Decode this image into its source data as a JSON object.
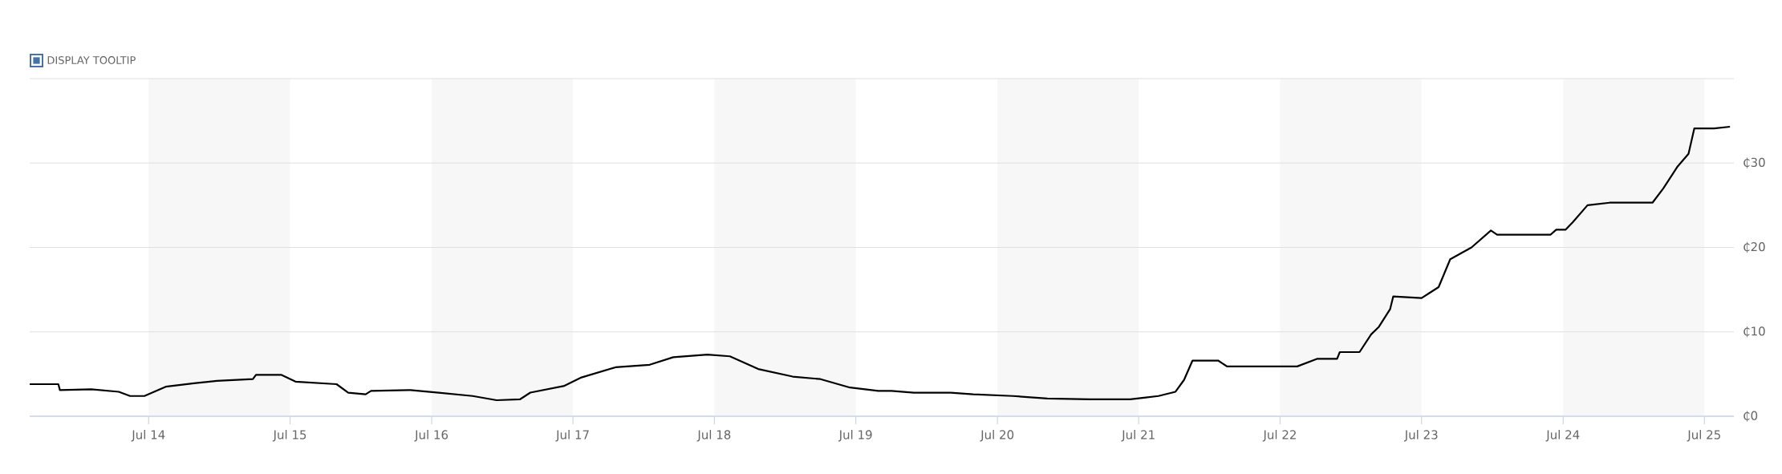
{
  "chart_data": {
    "type": "line",
    "annotations": [
      "DISPLAY TOOLTIP"
    ],
    "x": [
      "2013-08-28",
      "2013-11-10",
      "2013-11-14",
      "2014-02-03",
      "2014-04-15",
      "2014-05-14",
      "2014-06-20",
      "2014-08-14",
      "2014-10-26",
      "2014-12-24",
      "2015-03-27",
      "2015-04-04",
      "2015-06-09",
      "2015-07-15",
      "2015-10-29",
      "2015-11-28",
      "2016-01-12",
      "2016-01-26",
      "2016-05-07",
      "2016-07-19",
      "2016-10-15",
      "2016-12-16",
      "2017-02-14",
      "2017-03-13",
      "2017-06-09",
      "2017-07-23",
      "2017-10-19",
      "2018-01-15",
      "2018-03-17",
      "2018-06-13",
      "2018-08-10",
      "2018-10-22",
      "2019-01-19",
      "2019-04-01",
      "2019-06-16",
      "2019-08-28",
      "2019-10-01",
      "2019-11-28",
      "2020-03-02",
      "2020-04-29",
      "2020-08-10",
      "2020-11-07",
      "2021-02-25",
      "2021-06-09",
      "2021-07-15",
      "2021-08-21",
      "2021-10-04",
      "2021-10-26",
      "2021-11-17",
      "2022-01-22",
      "2022-02-14",
      "2022-08-14",
      "2022-10-04",
      "2022-11-25",
      "2022-12-02",
      "2023-01-22",
      "2023-02-21",
      "2023-03-13",
      "2023-04-11",
      "2023-04-19",
      "2023-07-01",
      "2023-08-14",
      "2023-09-13",
      "2023-11-07",
      "2023-12-27",
      "2024-01-12",
      "2024-03-24",
      "2024-05-29",
      "2024-06-13",
      "2024-07-07",
      "2024-07-26",
      "2024-09-02",
      "2024-10-29",
      "2025-02-17",
      "2025-03-17",
      "2025-04-23",
      "2025-05-21",
      "2025-06-05",
      "2025-07-26",
      "2025-09-05"
    ],
    "series": [
      {
        "color": "#000000",
        "values": [
          3.8,
          3.8,
          3.1,
          3.2,
          2.9,
          2.4,
          2.4,
          3.5,
          3.9,
          4.2,
          4.4,
          4.9,
          4.9,
          4.1,
          3.8,
          2.8,
          2.6,
          3.0,
          3.1,
          2.8,
          2.4,
          1.9,
          2.0,
          2.8,
          3.6,
          4.6,
          5.8,
          6.1,
          7.0,
          7.3,
          7.1,
          5.6,
          4.7,
          4.4,
          3.4,
          3.0,
          3.0,
          2.8,
          2.8,
          2.6,
          2.4,
          2.1,
          2.0,
          2.0,
          2.2,
          2.4,
          2.9,
          4.3,
          6.6,
          6.6,
          5.9,
          5.9,
          6.8,
          6.8,
          7.6,
          7.6,
          9.7,
          10.6,
          12.7,
          14.2,
          14.0,
          15.3,
          18.6,
          20.0,
          22.0,
          21.5,
          21.5,
          21.5,
          22.1,
          22.1,
          23.0,
          25.0,
          25.3,
          25.3,
          27.0,
          29.6,
          31.1,
          34.1,
          34.1,
          34.3
        ]
      }
    ],
    "xlim": [
      "2013-08-28",
      "2025-09-15"
    ],
    "ylim": [
      0,
      40
    ],
    "xticks": [
      {
        "value": "2014-07-01",
        "label": "Jul 14"
      },
      {
        "value": "2015-07-01",
        "label": "Jul 15"
      },
      {
        "value": "2016-07-01",
        "label": "Jul 16"
      },
      {
        "value": "2017-07-01",
        "label": "Jul 17"
      },
      {
        "value": "2018-07-01",
        "label": "Jul 18"
      },
      {
        "value": "2019-07-01",
        "label": "Jul 19"
      },
      {
        "value": "2020-07-01",
        "label": "Jul 20"
      },
      {
        "value": "2021-07-01",
        "label": "Jul 21"
      },
      {
        "value": "2022-07-01",
        "label": "Jul 22"
      },
      {
        "value": "2023-07-01",
        "label": "Jul 23"
      },
      {
        "value": "2024-07-01",
        "label": "Jul 24"
      },
      {
        "value": "2025-07-01",
        "label": "Jul 25"
      }
    ],
    "yticks": [
      {
        "value": 0,
        "label": "₵0"
      },
      {
        "value": 10,
        "label": "₵10"
      },
      {
        "value": 20,
        "label": "₵20"
      },
      {
        "value": 30,
        "label": "₵30"
      },
      {
        "value": 40,
        "label": null
      }
    ],
    "bands": [
      {
        "axis": "x",
        "from": "2014-07-01",
        "to": "2015-07-01",
        "color": "#f7f7f7"
      },
      {
        "axis": "x",
        "from": "2016-07-01",
        "to": "2017-07-01",
        "color": "#f7f7f7"
      },
      {
        "axis": "x",
        "from": "2018-07-01",
        "to": "2019-07-01",
        "color": "#f7f7f7"
      },
      {
        "axis": "x",
        "from": "2020-07-01",
        "to": "2021-07-01",
        "color": "#f7f7f7"
      },
      {
        "axis": "x",
        "from": "2022-07-01",
        "to": "2023-07-01",
        "color": "#f7f7f7"
      },
      {
        "axis": "x",
        "from": "2024-07-01",
        "to": "2025-07-01",
        "color": "#f7f7f7"
      }
    ],
    "grid": "y",
    "marker": "none",
    "line_style": "solid"
  }
}
